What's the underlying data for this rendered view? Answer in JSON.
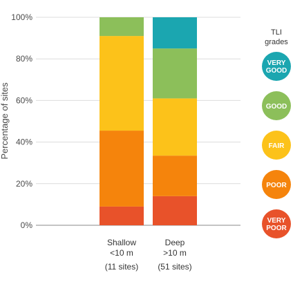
{
  "chart_data": {
    "type": "bar",
    "stacked": true,
    "ylabel": "Percentage of sites",
    "ylim": [
      0,
      100
    ],
    "yticks": [
      "0%",
      "20%",
      "40%",
      "60%",
      "80%",
      "100%"
    ],
    "grid": true,
    "categories": [
      {
        "line1": "Shallow",
        "line2": "<10 m",
        "line3": "(11 sites)"
      },
      {
        "line1": "Deep",
        "line2": ">10 m",
        "line3": "(51 sites)"
      }
    ],
    "series": [
      {
        "name": "VERY POOR",
        "line1": "VERY",
        "line2": "POOR",
        "color": "#e8522a",
        "values": [
          9,
          14
        ]
      },
      {
        "name": "POOR",
        "line1": "POOR",
        "line2": "",
        "color": "#f5840c",
        "values": [
          36.5,
          19.5
        ]
      },
      {
        "name": "FAIR",
        "line1": "FAIR",
        "line2": "",
        "color": "#fcc21a",
        "values": [
          45.5,
          27.5
        ]
      },
      {
        "name": "GOOD",
        "line1": "GOOD",
        "line2": "",
        "color": "#8cbf5a",
        "values": [
          9,
          24
        ]
      },
      {
        "name": "VERY GOOD",
        "line1": "VERY",
        "line2": "GOOD",
        "color": "#1ba6b0",
        "values": [
          0,
          15
        ]
      }
    ],
    "legend": {
      "title_line1": "TLI",
      "title_line2": "grades",
      "placement": "right"
    }
  }
}
